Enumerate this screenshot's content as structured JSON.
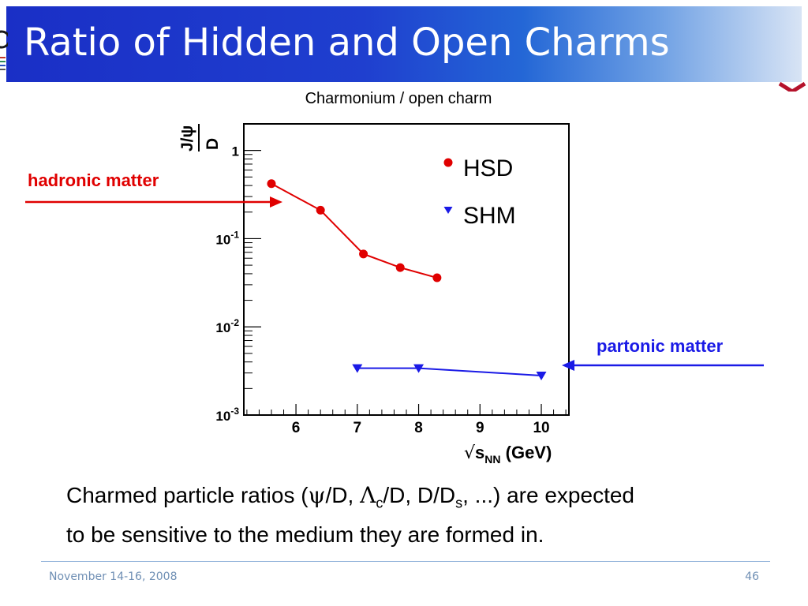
{
  "slide": {
    "title": "Ratio of Hidden and Open Charms",
    "chart_heading": "Charmonium / open charm",
    "callout_hadronic": "hadronic matter",
    "callout_partonic": "partonic matter",
    "body_lines": [
      "Charmed particle ratios (",
      "ψ",
      "/D, ",
      "Λ",
      "c",
      "/D, D/D",
      "s",
      ", ...) are expected",
      "to be sensitive to the medium they are formed in."
    ],
    "footer_date": "November 14-16, 2008",
    "page_number": "46"
  },
  "colors": {
    "title_bar": "#1f3fcf",
    "hsd": "#e00000",
    "shm": "#1a1ae6",
    "footer": "#6f8fb4"
  },
  "chart_data": {
    "type": "line",
    "title": "Charmonium / open charm",
    "xlabel": "√sNN (GeV)",
    "ylabel": "J/ψ / D",
    "xlim": [
      5.15,
      10.45
    ],
    "ylim": [
      0.001,
      2.0
    ],
    "yscale": "log",
    "xticks": [
      6,
      7,
      8,
      9,
      10
    ],
    "xtick_labels": [
      "6",
      "7",
      "8",
      "9",
      "10"
    ],
    "yticks": [
      0.001,
      0.01,
      0.1,
      1
    ],
    "ytick_labels": [
      {
        "base": "10",
        "exp": "-3"
      },
      {
        "base": "10",
        "exp": "-2"
      },
      {
        "base": "10",
        "exp": "-1"
      },
      {
        "base": "1",
        "exp": ""
      }
    ],
    "legend_position": "top-right",
    "series": [
      {
        "name": "HSD",
        "marker": "circle",
        "color": "#e00000",
        "x": [
          5.6,
          6.4,
          7.1,
          7.7,
          8.3
        ],
        "y": [
          0.42,
          0.21,
          0.067,
          0.047,
          0.036
        ]
      },
      {
        "name": "SHM",
        "marker": "triangle-down",
        "color": "#1a1ae6",
        "x": [
          7.0,
          8.0,
          10.0
        ],
        "y": [
          0.0034,
          0.0034,
          0.0028
        ]
      }
    ]
  }
}
